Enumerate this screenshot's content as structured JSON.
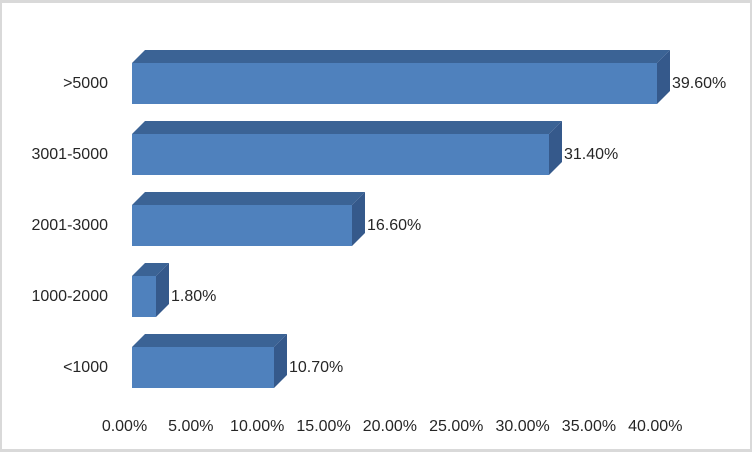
{
  "chart": {
    "frame_border_color": "#d9d9d9",
    "background_color": "#ffffff",
    "text_color": "#262626"
  },
  "chart_data": {
    "type": "bar",
    "orientation": "horizontal",
    "style": "3d",
    "title": "",
    "xlabel": "",
    "ylabel": "",
    "categories": [
      ">5000",
      "3001-5000",
      "2001-3000",
      "1000-2000",
      "<1000"
    ],
    "values": [
      39.6,
      31.4,
      16.6,
      1.8,
      10.7
    ],
    "data_labels": [
      "39.60%",
      "31.40%",
      "16.60%",
      "1.80%",
      "10.70%"
    ],
    "x_tick_labels": [
      "0.00%",
      "5.00%",
      "10.00%",
      "15.00%",
      "20.00%",
      "25.00%",
      "30.00%",
      "35.00%",
      "40.00%"
    ],
    "x_tick_values": [
      0,
      5,
      10,
      15,
      20,
      25,
      30,
      35,
      40
    ],
    "xlim": [
      0,
      40
    ],
    "grid": false,
    "legend": false,
    "bar_color_front": "#4f81bd",
    "bar_color_top": "#3b6395",
    "bar_color_side": "#35598b"
  }
}
